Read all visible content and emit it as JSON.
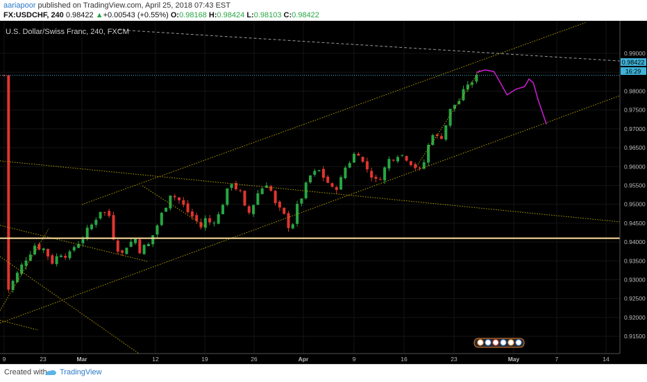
{
  "header": {
    "username": "aariapoor",
    "published_text": " published on TradingView.com, April 25, 2018 07:43 EST",
    "symbol": "FX:USDCHF, 240",
    "last": "0.98422",
    "change_arrow": "▲",
    "change": "+0.00543 (+0.55%)",
    "open_label": "O:",
    "open": "0.98168",
    "high_label": "H:",
    "high": "0.98424",
    "low_label": "L:",
    "low": "0.98103",
    "close_label": "C:",
    "close": "0.98422"
  },
  "chart": {
    "legend_title": "U.S. Dollar/Swiss Franc, 240, FXCM",
    "price_tag": "0.98422",
    "countdown_tag": "16:29",
    "colors": {
      "background": "#000000",
      "up_candle": "#27a644",
      "down_candle": "#e0352f",
      "trendline": "#b8a200",
      "support_line": "#ffe2a0",
      "projection": "#c21dc6",
      "price_line": "#3fb2d8",
      "grid": "#151515"
    }
  },
  "chart_data": {
    "type": "candlestick",
    "title": "U.S. Dollar/Swiss Franc, 240, FXCM",
    "interval": "240",
    "y_axis_ticks": [
      "0.99000",
      "0.98500",
      "0.98000",
      "0.97500",
      "0.97000",
      "0.96500",
      "0.96000",
      "0.95500",
      "0.95000",
      "0.94500",
      "0.94000",
      "0.93500",
      "0.93000",
      "0.92500",
      "0.92000",
      "0.91500"
    ],
    "x_axis_ticks": [
      "9",
      "23",
      "Mar",
      "12",
      "19",
      "26",
      "Apr",
      "9",
      "16",
      "23",
      "May",
      "7",
      "14"
    ],
    "ylim": [
      0.9095,
      0.9935
    ],
    "grid": true,
    "last_price": 0.98422,
    "close_path": [
      [
        1,
        0.9275
      ],
      [
        3,
        0.9315
      ],
      [
        5,
        0.9358
      ],
      [
        7,
        0.9392
      ],
      [
        9,
        0.9382
      ],
      [
        11,
        0.9348
      ],
      [
        13,
        0.9372
      ],
      [
        15,
        0.9365
      ],
      [
        16,
        0.9388
      ],
      [
        18,
        0.9412
      ],
      [
        20,
        0.9445
      ],
      [
        22,
        0.9485
      ],
      [
        24,
        0.947
      ],
      [
        25,
        0.9415
      ],
      [
        26,
        0.9385
      ],
      [
        27,
        0.9368
      ],
      [
        28,
        0.9392
      ],
      [
        30,
        0.9408
      ],
      [
        31,
        0.938
      ],
      [
        33,
        0.9392
      ],
      [
        35,
        0.9445
      ],
      [
        37,
        0.95
      ],
      [
        38,
        0.953
      ],
      [
        40,
        0.951
      ],
      [
        42,
        0.948
      ],
      [
        44,
        0.9455
      ],
      [
        45,
        0.944
      ],
      [
        46,
        0.946
      ],
      [
        47,
        0.9452
      ],
      [
        49,
        0.947
      ],
      [
        50,
        0.9505
      ],
      [
        51,
        0.9532
      ],
      [
        52,
        0.956
      ],
      [
        54,
        0.9528
      ],
      [
        55,
        0.9488
      ],
      [
        56,
        0.9478
      ],
      [
        57,
        0.9502
      ],
      [
        58,
        0.953
      ],
      [
        60,
        0.9558
      ],
      [
        61,
        0.9535
      ],
      [
        62,
        0.9498
      ],
      [
        64,
        0.9468
      ],
      [
        65,
        0.9445
      ],
      [
        66,
        0.9452
      ],
      [
        67,
        0.9492
      ],
      [
        68,
        0.952
      ],
      [
        70,
        0.9575
      ],
      [
        72,
        0.9588
      ],
      [
        74,
        0.9558
      ],
      [
        75,
        0.9538
      ],
      [
        76,
        0.9548
      ],
      [
        77,
        0.9565
      ],
      [
        78,
        0.9598
      ],
      [
        80,
        0.9632
      ],
      [
        81,
        0.964
      ],
      [
        82,
        0.961
      ],
      [
        84,
        0.9578
      ],
      [
        85,
        0.956
      ],
      [
        86,
        0.9575
      ],
      [
        87,
        0.9595
      ],
      [
        88,
        0.9618
      ],
      [
        90,
        0.9635
      ],
      [
        92,
        0.9625
      ],
      [
        94,
        0.96
      ],
      [
        95,
        0.9588
      ],
      [
        96,
        0.9612
      ],
      [
        97,
        0.9655
      ],
      [
        98,
        0.9692
      ],
      [
        99,
        0.9675
      ],
      [
        100,
        0.9682
      ],
      [
        101,
        0.9712
      ],
      [
        102,
        0.9748
      ],
      [
        103,
        0.9765
      ],
      [
        104,
        0.9775
      ],
      [
        105,
        0.9795
      ],
      [
        106,
        0.9822
      ],
      [
        107,
        0.9815
      ],
      [
        108,
        0.9842
      ]
    ],
    "projection": [
      [
        108,
        0.985
      ],
      [
        110,
        0.9856
      ],
      [
        112,
        0.9852
      ],
      [
        115,
        0.979
      ],
      [
        117,
        0.9805
      ],
      [
        119,
        0.9812
      ],
      [
        120,
        0.9832
      ],
      [
        121,
        0.9822
      ],
      [
        122,
        0.978
      ],
      [
        124,
        0.9712
      ]
    ],
    "annotations": [
      "ascending channel",
      "descending trendline",
      "horizontal support 0.9410",
      "projected path"
    ]
  }
}
